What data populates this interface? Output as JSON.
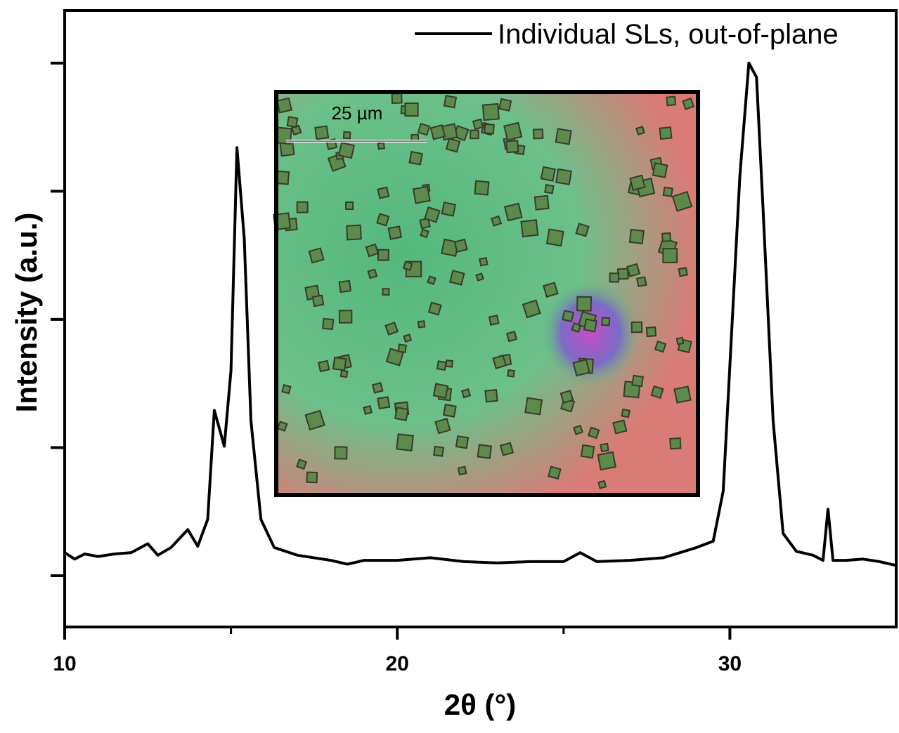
{
  "chart_data": {
    "type": "line",
    "xlabel": "2θ (°)",
    "ylabel": "Intensity (a.u.)",
    "xlim": [
      10,
      35
    ],
    "xticks": [
      10,
      20,
      30
    ],
    "xminorticks": [
      15,
      25
    ],
    "ylim": [
      -0.4,
      4.41
    ],
    "yticks": [
      0,
      1,
      2,
      3,
      4
    ],
    "ytick_labels": false,
    "legend": "upper right",
    "inset_label": "25 µm",
    "x": [
      10,
      10.3,
      10.6,
      11,
      11.5,
      12,
      12.5,
      12.8,
      13.2,
      13.7,
      14.0,
      14.3,
      14.5,
      14.8,
      15.0,
      15.18,
      15.4,
      15.6,
      15.9,
      16.3,
      17,
      18,
      18.5,
      19,
      20,
      21,
      22,
      23,
      24,
      25,
      25.5,
      26,
      27,
      28,
      29,
      29.5,
      29.8,
      30.0,
      30.3,
      30.57,
      30.8,
      31.0,
      31.3,
      31.6,
      32,
      32.5,
      32.8,
      32.95,
      33.1,
      33.5,
      34,
      34.5,
      35
    ],
    "series": [
      {
        "name": "Individual SLs, out-of-plane",
        "color": "#000000",
        "values": [
          0.18,
          0.13,
          0.17,
          0.15,
          0.17,
          0.18,
          0.25,
          0.16,
          0.22,
          0.36,
          0.23,
          0.44,
          1.29,
          1.01,
          1.6,
          3.34,
          2.63,
          1.21,
          0.44,
          0.22,
          0.16,
          0.12,
          0.09,
          0.12,
          0.12,
          0.14,
          0.11,
          0.1,
          0.11,
          0.11,
          0.18,
          0.11,
          0.12,
          0.14,
          0.22,
          0.27,
          0.66,
          1.64,
          3.12,
          4.0,
          3.89,
          2.85,
          1.21,
          0.33,
          0.19,
          0.16,
          0.12,
          0.52,
          0.12,
          0.12,
          0.13,
          0.11,
          0.08
        ]
      }
    ]
  }
}
